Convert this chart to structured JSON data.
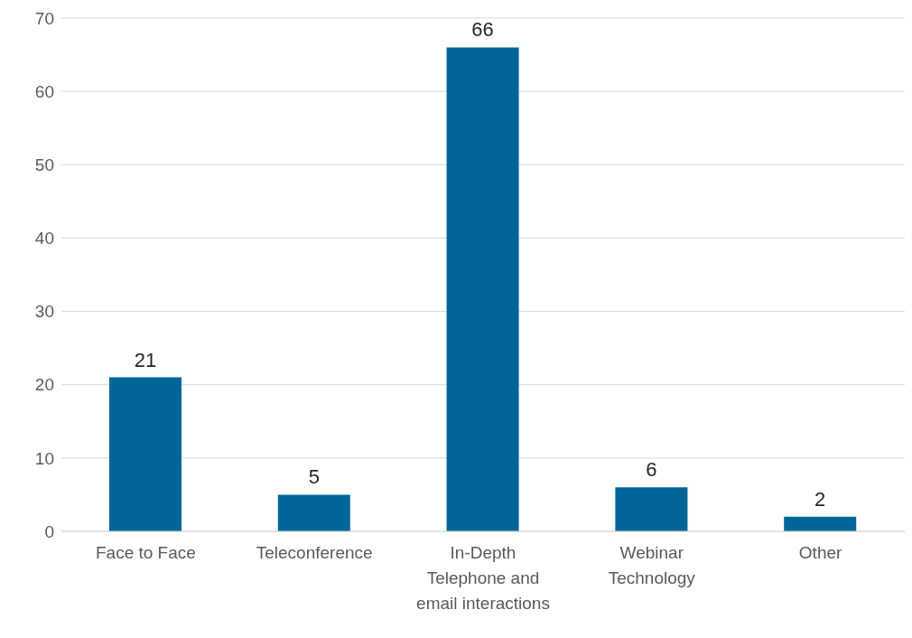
{
  "chart_data": {
    "type": "bar",
    "categories": [
      "Face to Face",
      "Teleconference",
      "In-Depth Telephone and email interactions",
      "Webinar Technology",
      "Other"
    ],
    "values": [
      21,
      5,
      66,
      6,
      2
    ],
    "color": "#006699",
    "ylim": [
      0,
      70
    ],
    "yticks": [
      0,
      10,
      20,
      30,
      40,
      50,
      60,
      70
    ],
    "grid": "y",
    "data_labels": true
  }
}
